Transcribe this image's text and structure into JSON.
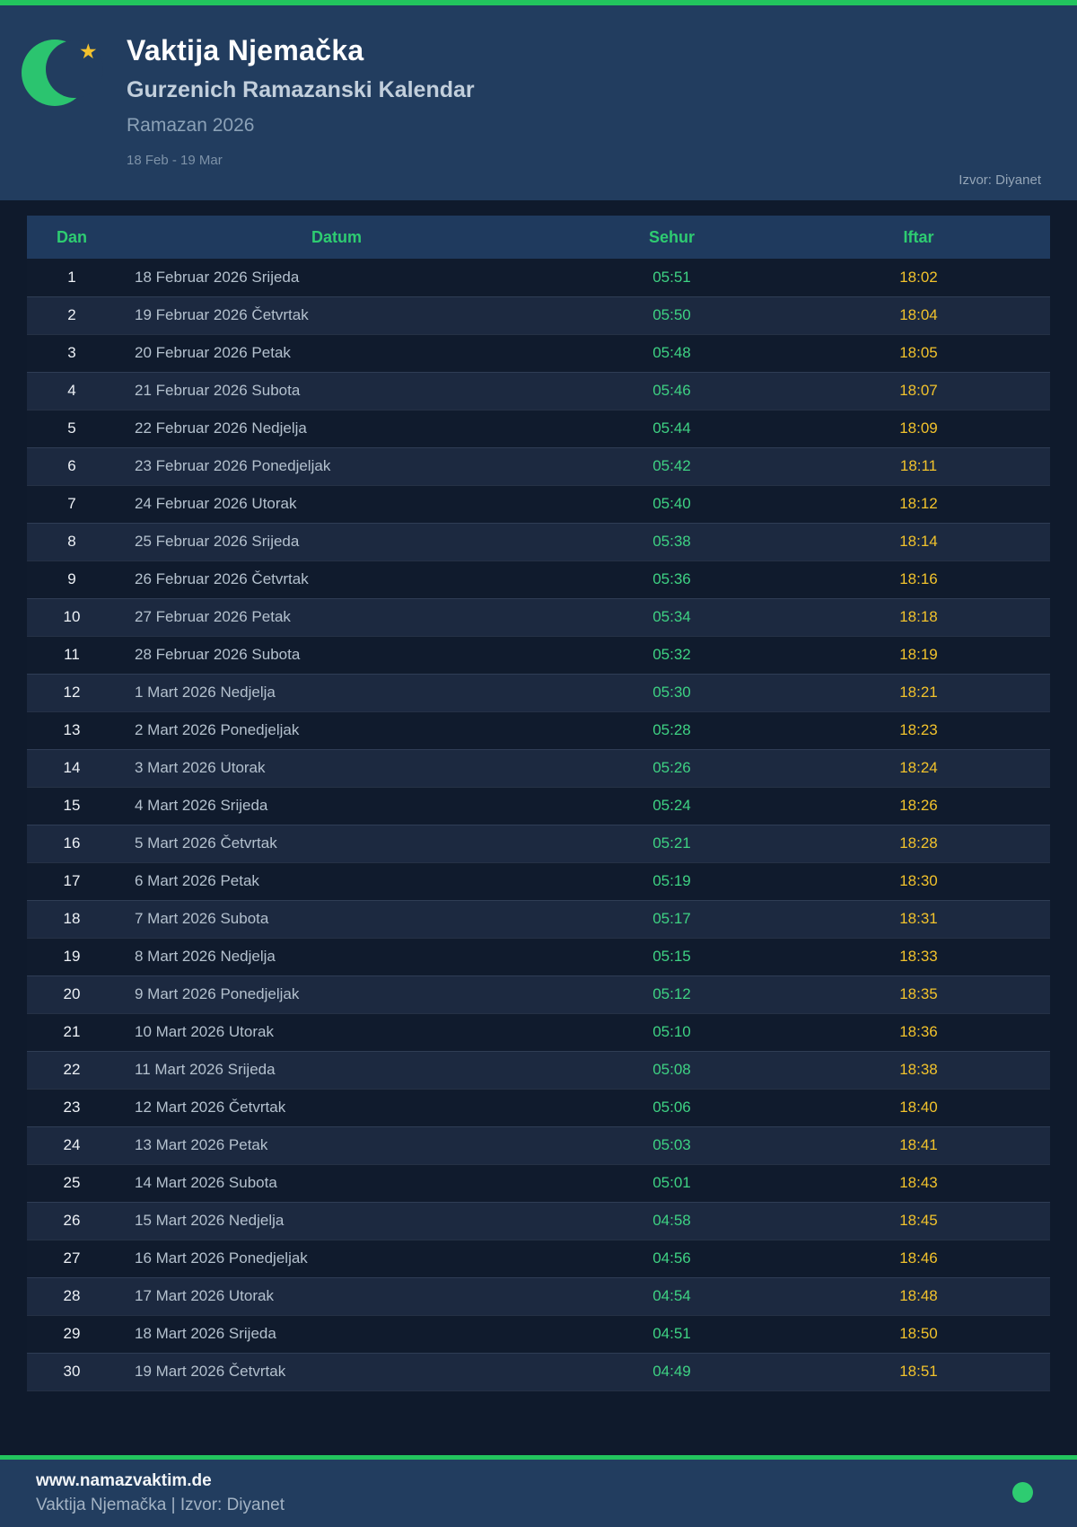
{
  "header": {
    "title": "Vaktija Njemačka",
    "subtitle": "Gurzenich Ramazanski Kalendar",
    "season": "Ramazan 2026",
    "date_range": "18 Feb - 19 Mar",
    "source": "Izvor: Diyanet",
    "logo": {
      "moon_icon": "crescent-moon",
      "star_icon": "star"
    }
  },
  "table": {
    "columns": [
      "Dan",
      "Datum",
      "Sehur",
      "Iftar"
    ],
    "rows": [
      {
        "dan": "1",
        "datum": "18 Februar 2026 Srijeda",
        "sehur": "05:51",
        "iftar": "18:02"
      },
      {
        "dan": "2",
        "datum": "19 Februar 2026 Četvrtak",
        "sehur": "05:50",
        "iftar": "18:04"
      },
      {
        "dan": "3",
        "datum": "20 Februar 2026 Petak",
        "sehur": "05:48",
        "iftar": "18:05"
      },
      {
        "dan": "4",
        "datum": "21 Februar 2026 Subota",
        "sehur": "05:46",
        "iftar": "18:07"
      },
      {
        "dan": "5",
        "datum": "22 Februar 2026 Nedjelja",
        "sehur": "05:44",
        "iftar": "18:09"
      },
      {
        "dan": "6",
        "datum": "23 Februar 2026 Ponedjeljak",
        "sehur": "05:42",
        "iftar": "18:11"
      },
      {
        "dan": "7",
        "datum": "24 Februar 2026 Utorak",
        "sehur": "05:40",
        "iftar": "18:12"
      },
      {
        "dan": "8",
        "datum": "25 Februar 2026 Srijeda",
        "sehur": "05:38",
        "iftar": "18:14"
      },
      {
        "dan": "9",
        "datum": "26 Februar 2026 Četvrtak",
        "sehur": "05:36",
        "iftar": "18:16"
      },
      {
        "dan": "10",
        "datum": "27 Februar 2026 Petak",
        "sehur": "05:34",
        "iftar": "18:18"
      },
      {
        "dan": "11",
        "datum": "28 Februar 2026 Subota",
        "sehur": "05:32",
        "iftar": "18:19"
      },
      {
        "dan": "12",
        "datum": "1 Mart 2026 Nedjelja",
        "sehur": "05:30",
        "iftar": "18:21"
      },
      {
        "dan": "13",
        "datum": "2 Mart 2026 Ponedjeljak",
        "sehur": "05:28",
        "iftar": "18:23"
      },
      {
        "dan": "14",
        "datum": "3 Mart 2026 Utorak",
        "sehur": "05:26",
        "iftar": "18:24"
      },
      {
        "dan": "15",
        "datum": "4 Mart 2026 Srijeda",
        "sehur": "05:24",
        "iftar": "18:26"
      },
      {
        "dan": "16",
        "datum": "5 Mart 2026 Četvrtak",
        "sehur": "05:21",
        "iftar": "18:28"
      },
      {
        "dan": "17",
        "datum": "6 Mart 2026 Petak",
        "sehur": "05:19",
        "iftar": "18:30"
      },
      {
        "dan": "18",
        "datum": "7 Mart 2026 Subota",
        "sehur": "05:17",
        "iftar": "18:31"
      },
      {
        "dan": "19",
        "datum": "8 Mart 2026 Nedjelja",
        "sehur": "05:15",
        "iftar": "18:33"
      },
      {
        "dan": "20",
        "datum": "9 Mart 2026 Ponedjeljak",
        "sehur": "05:12",
        "iftar": "18:35"
      },
      {
        "dan": "21",
        "datum": "10 Mart 2026 Utorak",
        "sehur": "05:10",
        "iftar": "18:36"
      },
      {
        "dan": "22",
        "datum": "11 Mart 2026 Srijeda",
        "sehur": "05:08",
        "iftar": "18:38"
      },
      {
        "dan": "23",
        "datum": "12 Mart 2026 Četvrtak",
        "sehur": "05:06",
        "iftar": "18:40"
      },
      {
        "dan": "24",
        "datum": "13 Mart 2026 Petak",
        "sehur": "05:03",
        "iftar": "18:41"
      },
      {
        "dan": "25",
        "datum": "14 Mart 2026 Subota",
        "sehur": "05:01",
        "iftar": "18:43"
      },
      {
        "dan": "26",
        "datum": "15 Mart 2026 Nedjelja",
        "sehur": "04:58",
        "iftar": "18:45"
      },
      {
        "dan": "27",
        "datum": "16 Mart 2026 Ponedjeljak",
        "sehur": "04:56",
        "iftar": "18:46"
      },
      {
        "dan": "28",
        "datum": "17 Mart 2026 Utorak",
        "sehur": "04:54",
        "iftar": "18:48"
      },
      {
        "dan": "29",
        "datum": "18 Mart 2026 Srijeda",
        "sehur": "04:51",
        "iftar": "18:50"
      },
      {
        "dan": "30",
        "datum": "19 Mart 2026 Četvrtak",
        "sehur": "04:49",
        "iftar": "18:51"
      }
    ]
  },
  "footer": {
    "website": "www.namazvaktim.de",
    "tagline": "Vaktija Njemačka | Izvor: Diyanet",
    "status_dot_icon": "green-dot"
  },
  "colors": {
    "accent_green": "#22c55e",
    "sehur_green": "#3ed283",
    "iftar_gold": "#f1c22c",
    "header_bg": "#223d5f",
    "page_bg": "#0f1a2c",
    "moon_green": "#2bc46f",
    "star_gold": "#f2c12e"
  }
}
